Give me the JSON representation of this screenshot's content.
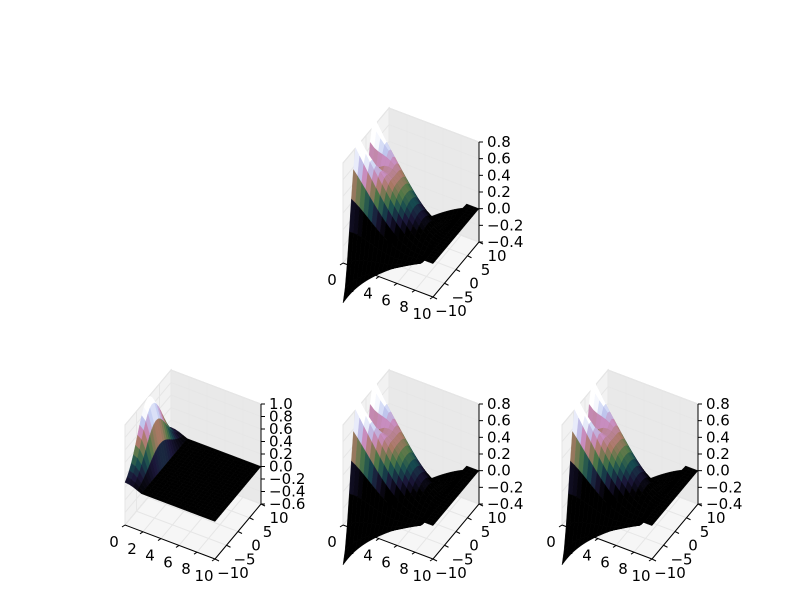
{
  "colors": {
    "pane_left": "#f2f2f2",
    "pane_right": "#e9e9e9",
    "floor": "#f6f6f6",
    "grid": "#e2e2e2",
    "surface_dark": "#000000",
    "surface_mid": "#5a8f5f",
    "surface_light": "#ffffff",
    "colormap": "cubehelix"
  },
  "chart_data": [
    {
      "type": "surface3d",
      "name": "top",
      "x_ticks": [
        "0",
        "2",
        "4",
        "6",
        "8",
        "10"
      ],
      "y_ticks": [
        "−10",
        "−5",
        "0",
        "5",
        "10"
      ],
      "z_ticks": [
        "0.8",
        "0.6",
        "0.4",
        "0.2",
        "0.0",
        "−0.2",
        "−0.4"
      ],
      "xlim": [
        0,
        10
      ],
      "ylim": [
        -10,
        10
      ],
      "zlim": [
        -0.4,
        0.8
      ],
      "shape": "ridge",
      "grid": true
    },
    {
      "type": "surface3d",
      "name": "bottom-left",
      "x_ticks": [
        "0",
        "2",
        "4",
        "6",
        "8",
        "10"
      ],
      "y_ticks": [
        "−10",
        "−5",
        "0",
        "5",
        "10"
      ],
      "z_ticks": [
        "1.0",
        "0.8",
        "0.6",
        "0.4",
        "0.2",
        "0.0",
        "−0.2",
        "−0.4",
        "−0.6"
      ],
      "xlim": [
        0,
        10
      ],
      "ylim": [
        -10,
        10
      ],
      "zlim": [
        -0.6,
        1.0
      ],
      "shape": "peak",
      "grid": true
    },
    {
      "type": "surface3d",
      "name": "bottom-middle",
      "x_ticks": [
        "0",
        "2",
        "4",
        "6",
        "8",
        "10"
      ],
      "y_ticks": [
        "−10",
        "−5",
        "0",
        "5",
        "10"
      ],
      "z_ticks": [
        "0.8",
        "0.6",
        "0.4",
        "0.2",
        "0.0",
        "−0.2",
        "−0.4"
      ],
      "xlim": [
        0,
        10
      ],
      "ylim": [
        -10,
        10
      ],
      "zlim": [
        -0.4,
        0.8
      ],
      "shape": "ridge",
      "grid": true
    },
    {
      "type": "surface3d",
      "name": "bottom-right",
      "x_ticks": [
        "0",
        "2",
        "4",
        "6",
        "8",
        "10"
      ],
      "y_ticks": [
        "−10",
        "−5",
        "0",
        "5",
        "10"
      ],
      "z_ticks": [
        "0.8",
        "0.6",
        "0.4",
        "0.2",
        "0.0",
        "−0.2",
        "−0.4"
      ],
      "xlim": [
        0,
        10
      ],
      "ylim": [
        -10,
        10
      ],
      "zlim": [
        -0.4,
        0.8
      ],
      "shape": "ridge",
      "grid": true
    }
  ]
}
